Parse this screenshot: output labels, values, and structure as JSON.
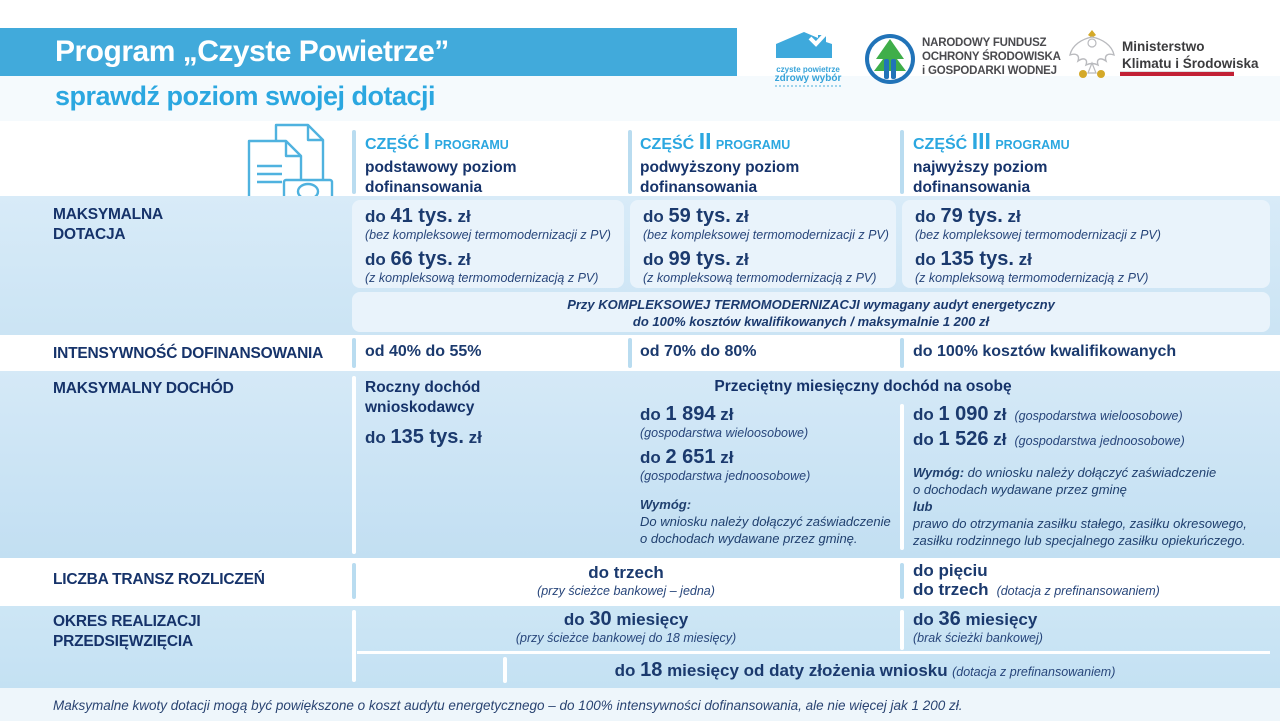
{
  "colors": {
    "accent_blue": "#2ba7e0",
    "header_bar_blue": "#41aadb",
    "navy_text": "#1b3a6e",
    "row_light_blue": "#cfe6f5",
    "cell_pale_blue": "#e9f3fb",
    "ministry_red": "#c22035",
    "nfos_green": "#3fae49"
  },
  "icons": {
    "documents_money_icon": "outlined documents with banknote",
    "house_check_icon": "blue house with checkmark",
    "tree_circle_icon": "green tree in blue circle",
    "eagle_icon": "white eagle with gold crown"
  },
  "header": {
    "title": "Program „Czyste Powietrze”",
    "subtitle": "sprawdź poziom swojej dotacji"
  },
  "logos": {
    "czyste": {
      "line1": "czyste powietrze",
      "line2": "zdrowy wybór"
    },
    "nfos": {
      "line1": "NARODOWY FUNDUSZ",
      "line2": "OCHRONY ŚRODOWISKA",
      "line3": "i GOSPODARKI WODNEJ"
    },
    "ministry": {
      "line1": "Ministerstwo",
      "line2": "Klimatu i Środowiska"
    }
  },
  "columns": [
    {
      "czesc": "CZĘŚĆ",
      "num": "I",
      "programu": "PROGRAMU",
      "desc1": "podstawowy poziom",
      "desc2": "dofinansowania"
    },
    {
      "czesc": "CZĘŚĆ",
      "num": "II",
      "programu": "PROGRAMU",
      "desc1": "podwyższony poziom",
      "desc2": "dofinansowania"
    },
    {
      "czesc": "CZĘŚĆ",
      "num": "III",
      "programu": "PROGRAMU",
      "desc1": "najwyższy poziom",
      "desc2": "dofinansowania"
    }
  ],
  "rows": {
    "dotacja": {
      "label1": "MAKSYMALNA",
      "label2": "DOTACJA",
      "cells": [
        {
          "v1": "do **41 tys.** zł",
          "p1": "(bez kompleksowej termomodernizacji z PV)",
          "v2": "do **66 tys.** zł",
          "p2": "(z kompleksową termomodernizacją z PV)"
        },
        {
          "v1": "do **59 tys.** zł",
          "p1": "(bez kompleksowej termomodernizacji z PV)",
          "v2": "do **99 tys.** zł",
          "p2": "(z kompleksową termomodernizacją z PV)"
        },
        {
          "v1": "do **79 tys.** zł",
          "p1": "(bez kompleksowej termomodernizacji z PV)",
          "v2": "do **135 tys.** zł",
          "p2": "(z kompleksową termomodernizacją z PV)"
        }
      ],
      "note1": "Przy **KOMPLEKSOWEJ TERMOMODERNIZACJI** wymagany audyt energetyczny",
      "note2": "do 100% kosztów kwalifikowanych / maksymalnie 1 200 zł"
    },
    "intensywnosc": {
      "label": "INTENSYWNOŚĆ DOFINANSOWANIA",
      "cells": [
        "od **40%** do **55%**",
        "od **70%** do **80%**",
        "do **100%** kosztów kwalifikowanych"
      ]
    },
    "dochod": {
      "label": "MAKSYMALNY DOCHÓD",
      "col1": {
        "line1": "Roczny dochód",
        "line2": "wnioskodawcy",
        "value": "do **135 tys.** zł"
      },
      "span_header": "Przeciętny miesięczny dochód na osobę",
      "col2": {
        "v1": "do **1 894** zł",
        "p1": "(gospodarstwa wieloosobowe)",
        "v2": "do **2 651** zł",
        "p2": "(gospodarstwa jednoosobowe)",
        "wymog_title": "**Wymóg:**",
        "wymog1": "Do wniosku należy dołączyć zaświadczenie",
        "wymog2": "o dochodach wydawane przez gminę."
      },
      "col3": {
        "v1": "do **1 090** zł",
        "p1": "(gospodarstwa wieloosobowe)",
        "v2": "do **1 526** zł",
        "p2": "(gospodarstwa jednoosobowe)",
        "wymog1": "**Wymóg:** do wniosku należy dołączyć zaświadczenie",
        "wymog2": "o dochodach wydawane przez gminę",
        "lub": "**lub**",
        "prawo1": "prawo do otrzymania zasiłku stałego, zasiłku okresowego,",
        "prawo2": "zasiłku rodzinnego lub specjalnego zasiłku opiekuńczego."
      }
    },
    "transze": {
      "label": "LICZBA TRANSZ ROZLICZEŃ",
      "span12": {
        "main": "do trzech",
        "sub": "(przy ścieżce bankowej – jedna)"
      },
      "col3": {
        "line1": "do pięciu",
        "line2_main": "do trzech",
        "line2_sub": "(dotacja z prefinansowaniem)"
      }
    },
    "okres": {
      "label1": "OKRES REALIZACJI",
      "label2": "PRZEDSIĘWZIĘCIA",
      "span12": {
        "main": "do **30** miesięcy",
        "sub": "(przy ścieżce bankowej do 18 miesięcy)"
      },
      "col3": {
        "main": "do **36** miesięcy",
        "sub": "(brak ścieżki bankowej)"
      },
      "bottom": {
        "main": "do **18** miesięcy od daty złożenia wniosku",
        "sub": "(dotacja z prefinansowaniem)"
      }
    }
  },
  "footer": {
    "note": "Maksymalne kwoty dotacji mogą być powiększone o koszt audytu energetycznego – do 100% intensywności dofinansowania, ale nie więcej jak 1 200 zł."
  }
}
